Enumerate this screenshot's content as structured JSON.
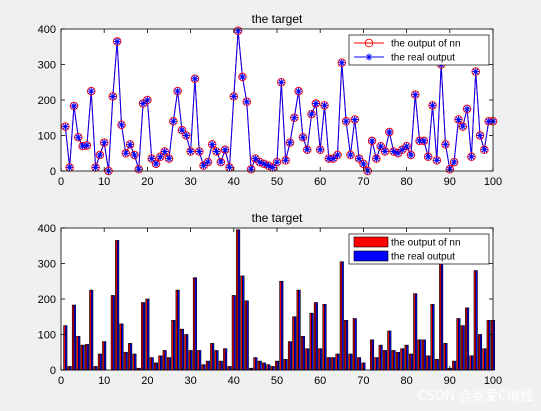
{
  "chart_data": [
    {
      "type": "line",
      "title": "the target",
      "xlabel": "",
      "ylabel": "",
      "xlim": [
        0,
        100
      ],
      "ylim": [
        0,
        400
      ],
      "xticks": [
        0,
        10,
        20,
        30,
        40,
        50,
        60,
        70,
        80,
        90,
        100
      ],
      "yticks": [
        0,
        100,
        200,
        300,
        400
      ],
      "legend_position": "top-right",
      "x": [
        1,
        2,
        3,
        4,
        5,
        6,
        7,
        8,
        9,
        10,
        11,
        12,
        13,
        14,
        15,
        16,
        17,
        18,
        19,
        20,
        21,
        22,
        23,
        24,
        25,
        26,
        27,
        28,
        29,
        30,
        31,
        32,
        33,
        34,
        35,
        36,
        37,
        38,
        39,
        40,
        41,
        42,
        43,
        44,
        45,
        46,
        47,
        48,
        49,
        50,
        51,
        52,
        53,
        54,
        55,
        56,
        57,
        58,
        59,
        60,
        61,
        62,
        63,
        64,
        65,
        66,
        67,
        68,
        69,
        70,
        71,
        72,
        73,
        74,
        75,
        76,
        77,
        78,
        79,
        80,
        81,
        82,
        83,
        84,
        85,
        86,
        87,
        88,
        89,
        90,
        91,
        92,
        93,
        94,
        95,
        96,
        97,
        98,
        99,
        100
      ],
      "series": [
        {
          "name": "the output of nn",
          "color": "#ff0000",
          "marker": "circle",
          "values": [
            125,
            10,
            183,
            95,
            70,
            72,
            225,
            10,
            45,
            80,
            0,
            210,
            365,
            130,
            50,
            75,
            45,
            5,
            190,
            200,
            35,
            20,
            40,
            55,
            35,
            140,
            225,
            115,
            100,
            55,
            260,
            55,
            15,
            25,
            75,
            55,
            25,
            60,
            10,
            210,
            395,
            265,
            195,
            5,
            35,
            25,
            20,
            15,
            10,
            25,
            250,
            30,
            80,
            150,
            225,
            95,
            60,
            160,
            190,
            60,
            185,
            35,
            35,
            45,
            305,
            140,
            45,
            145,
            35,
            20,
            0,
            85,
            35,
            70,
            55,
            110,
            55,
            50,
            60,
            70,
            45,
            215,
            85,
            85,
            40,
            185,
            30,
            300,
            75,
            5,
            25,
            145,
            125,
            175,
            40,
            280,
            100,
            60,
            140,
            140
          ]
        },
        {
          "name": "the real output",
          "color": "#0000ff",
          "marker": "star",
          "values": [
            125,
            10,
            183,
            95,
            70,
            72,
            225,
            10,
            45,
            80,
            0,
            210,
            365,
            130,
            50,
            75,
            45,
            5,
            190,
            200,
            35,
            20,
            40,
            55,
            35,
            140,
            225,
            115,
            100,
            55,
            260,
            55,
            15,
            25,
            75,
            55,
            25,
            60,
            10,
            210,
            395,
            265,
            195,
            5,
            35,
            25,
            20,
            15,
            10,
            25,
            250,
            30,
            80,
            150,
            225,
            95,
            60,
            160,
            190,
            60,
            185,
            35,
            35,
            45,
            305,
            140,
            45,
            145,
            35,
            20,
            0,
            85,
            35,
            70,
            55,
            110,
            55,
            50,
            60,
            70,
            45,
            215,
            85,
            85,
            40,
            185,
            30,
            300,
            75,
            5,
            25,
            145,
            125,
            175,
            40,
            280,
            100,
            60,
            140,
            140
          ]
        }
      ]
    },
    {
      "type": "bar",
      "title": "the target",
      "xlabel": "",
      "ylabel": "",
      "xlim": [
        0,
        100
      ],
      "ylim": [
        0,
        400
      ],
      "xticks": [
        0,
        10,
        20,
        30,
        40,
        50,
        60,
        70,
        80,
        90,
        100
      ],
      "yticks": [
        0,
        100,
        200,
        300,
        400
      ],
      "legend_position": "top-right",
      "x": [
        1,
        2,
        3,
        4,
        5,
        6,
        7,
        8,
        9,
        10,
        11,
        12,
        13,
        14,
        15,
        16,
        17,
        18,
        19,
        20,
        21,
        22,
        23,
        24,
        25,
        26,
        27,
        28,
        29,
        30,
        31,
        32,
        33,
        34,
        35,
        36,
        37,
        38,
        39,
        40,
        41,
        42,
        43,
        44,
        45,
        46,
        47,
        48,
        49,
        50,
        51,
        52,
        53,
        54,
        55,
        56,
        57,
        58,
        59,
        60,
        61,
        62,
        63,
        64,
        65,
        66,
        67,
        68,
        69,
        70,
        71,
        72,
        73,
        74,
        75,
        76,
        77,
        78,
        79,
        80,
        81,
        82,
        83,
        84,
        85,
        86,
        87,
        88,
        89,
        90,
        91,
        92,
        93,
        94,
        95,
        96,
        97,
        98,
        99,
        100
      ],
      "series": [
        {
          "name": "the output of nn",
          "color": "#ff0000",
          "values": [
            125,
            10,
            183,
            95,
            70,
            72,
            225,
            10,
            45,
            80,
            0,
            210,
            365,
            130,
            50,
            75,
            45,
            5,
            190,
            200,
            35,
            20,
            40,
            55,
            35,
            140,
            225,
            115,
            100,
            55,
            260,
            55,
            15,
            25,
            75,
            55,
            25,
            60,
            10,
            210,
            395,
            265,
            195,
            5,
            35,
            25,
            20,
            15,
            10,
            25,
            250,
            30,
            80,
            150,
            225,
            95,
            60,
            160,
            190,
            60,
            185,
            35,
            35,
            45,
            305,
            140,
            45,
            145,
            35,
            20,
            0,
            85,
            35,
            70,
            55,
            110,
            55,
            50,
            60,
            70,
            45,
            215,
            85,
            85,
            40,
            185,
            30,
            300,
            75,
            5,
            25,
            145,
            125,
            175,
            40,
            280,
            100,
            60,
            140,
            140
          ]
        },
        {
          "name": "the real output",
          "color": "#0000ff",
          "values": [
            125,
            10,
            183,
            95,
            70,
            72,
            225,
            10,
            45,
            80,
            0,
            210,
            365,
            130,
            50,
            75,
            45,
            5,
            190,
            200,
            35,
            20,
            40,
            55,
            35,
            140,
            225,
            115,
            100,
            55,
            260,
            55,
            15,
            25,
            75,
            55,
            25,
            60,
            10,
            210,
            395,
            265,
            195,
            5,
            35,
            25,
            20,
            15,
            10,
            25,
            250,
            30,
            80,
            150,
            225,
            95,
            60,
            160,
            190,
            60,
            185,
            35,
            35,
            45,
            305,
            140,
            45,
            145,
            35,
            20,
            0,
            85,
            35,
            70,
            55,
            110,
            55,
            50,
            60,
            70,
            45,
            215,
            85,
            85,
            40,
            185,
            30,
            300,
            75,
            5,
            25,
            145,
            125,
            175,
            40,
            280,
            100,
            60,
            140,
            140
          ]
        }
      ]
    }
  ],
  "watermark": "CSDN @我爱C编程",
  "colors": {
    "figure_background": "#f0f0f0",
    "axes_background": "#ffffff",
    "axis_line": "#000000"
  }
}
